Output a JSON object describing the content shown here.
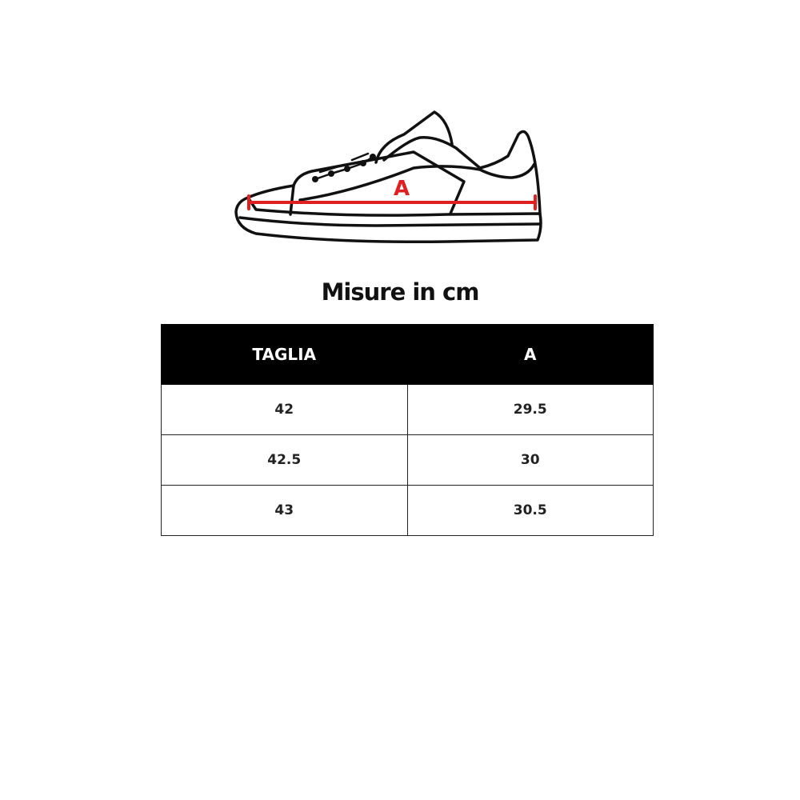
{
  "diagram": {
    "measure_label": "A",
    "measure_color": "#e02020",
    "icon": "sneaker-outline-icon"
  },
  "title": "Misure in cm",
  "table": {
    "headers": [
      "TAGLIA",
      "A"
    ],
    "rows": [
      [
        "42",
        "29.5"
      ],
      [
        "42.5",
        "30"
      ],
      [
        "43",
        "30.5"
      ]
    ]
  }
}
